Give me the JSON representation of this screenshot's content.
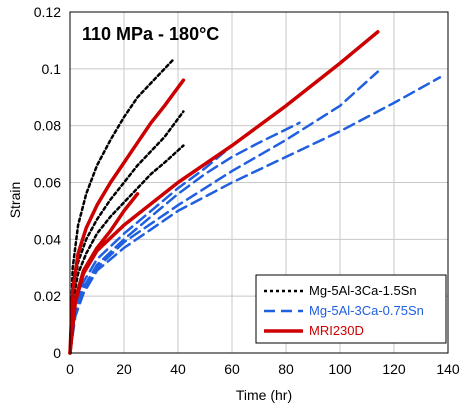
{
  "chart_data": {
    "type": "line",
    "title": "110 MPa - 180°C",
    "xlabel": "Time (hr)",
    "ylabel": "Strain",
    "xlim": [
      0,
      140
    ],
    "ylim": [
      0,
      0.12
    ],
    "xticks": [
      "0",
      "20",
      "40",
      "60",
      "80",
      "100",
      "120",
      "140"
    ],
    "yticks": [
      "0",
      "0.02",
      "0.04",
      "0.06",
      "0.08",
      "0.1",
      "0.12"
    ],
    "grid": true,
    "legend_position": "bottom-right",
    "series": [
      {
        "name": "Mg-5Al-3Ca-1.5Sn",
        "color": "#000000",
        "style": "dotted",
        "curves": [
          {
            "x": [
              0,
              1,
              3,
              6,
              10,
              15,
              20,
              25,
              30,
              35,
              38
            ],
            "y": [
              0,
              0.03,
              0.045,
              0.056,
              0.066,
              0.075,
              0.083,
              0.09,
              0.095,
              0.1,
              0.103
            ]
          },
          {
            "x": [
              0,
              1,
              3,
              6,
              10,
              15,
              20,
              25,
              30,
              35,
              42
            ],
            "y": [
              0,
              0.02,
              0.032,
              0.04,
              0.047,
              0.054,
              0.06,
              0.066,
              0.071,
              0.076,
              0.085
            ]
          },
          {
            "x": [
              0,
              1,
              3,
              6,
              10,
              15,
              20,
              25,
              30,
              35,
              42
            ],
            "y": [
              0,
              0.018,
              0.028,
              0.035,
              0.042,
              0.048,
              0.053,
              0.058,
              0.063,
              0.067,
              0.073
            ]
          }
        ]
      },
      {
        "name": "Mg-5Al-3Ca-0.75Sn",
        "color": "#1f5fe0",
        "style": "dashed",
        "curves": [
          {
            "x": [
              0,
              2,
              5,
              10,
              20,
              30,
              40,
              50,
              60,
              70,
              80
            ],
            "y": [
              0,
              0.015,
              0.025,
              0.033,
              0.042,
              0.05,
              0.058,
              0.065,
              0.073,
              0.08,
              0.087
            ]
          },
          {
            "x": [
              0,
              2,
              5,
              10,
              20,
              30,
              40,
              50,
              60,
              70,
              85
            ],
            "y": [
              0,
              0.014,
              0.023,
              0.031,
              0.04,
              0.048,
              0.056,
              0.063,
              0.069,
              0.074,
              0.081
            ]
          },
          {
            "x": [
              0,
              2,
              5,
              10,
              20,
              40,
              60,
              80,
              100,
              120,
              137
            ],
            "y": [
              0,
              0.013,
              0.021,
              0.029,
              0.037,
              0.05,
              0.06,
              0.069,
              0.078,
              0.088,
              0.097
            ]
          },
          {
            "x": [
              0,
              2,
              5,
              10,
              20,
              40,
              60,
              80,
              100,
              114
            ],
            "y": [
              0,
              0.014,
              0.022,
              0.03,
              0.039,
              0.052,
              0.064,
              0.075,
              0.087,
              0.099
            ]
          }
        ]
      },
      {
        "name": "MRI230D",
        "color": "#cc0000",
        "style": "solid",
        "curves": [
          {
            "x": [
              0,
              1,
              3,
              6,
              10,
              15,
              20,
              25,
              30,
              35,
              42
            ],
            "y": [
              0,
              0.022,
              0.035,
              0.044,
              0.052,
              0.06,
              0.067,
              0.074,
              0.081,
              0.087,
              0.096
            ]
          },
          {
            "x": [
              0,
              2,
              5,
              10,
              20,
              40,
              60,
              80,
              100,
              114
            ],
            "y": [
              0,
              0.018,
              0.028,
              0.036,
              0.045,
              0.06,
              0.073,
              0.087,
              0.102,
              0.113
            ]
          },
          {
            "x": [
              0,
              2,
              5,
              10,
              15,
              20,
              25
            ],
            "y": [
              0,
              0.019,
              0.029,
              0.037,
              0.043,
              0.05,
              0.056
            ]
          }
        ]
      }
    ]
  }
}
